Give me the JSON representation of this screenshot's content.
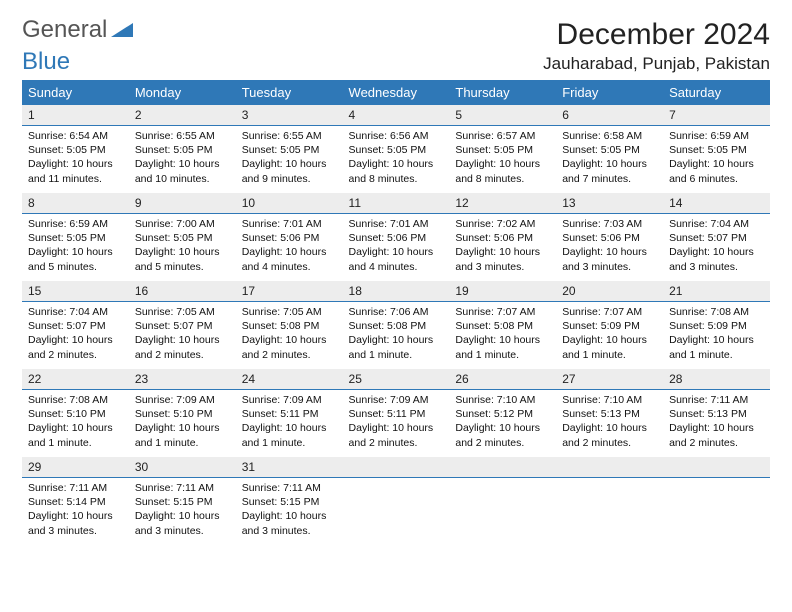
{
  "brand": {
    "word1": "General",
    "word2": "Blue"
  },
  "title": "December 2024",
  "location": "Jauharabad, Punjab, Pakistan",
  "colors": {
    "header_bg": "#2f78b7",
    "header_fg": "#ffffff",
    "daynum_bg": "#ededed",
    "rule": "#2f78b7",
    "page_bg": "#ffffff",
    "text": "#111111"
  },
  "day_headers": [
    "Sunday",
    "Monday",
    "Tuesday",
    "Wednesday",
    "Thursday",
    "Friday",
    "Saturday"
  ],
  "days": [
    {
      "n": "1",
      "sr": "Sunrise: 6:54 AM",
      "ss": "Sunset: 5:05 PM",
      "dl1": "Daylight: 10 hours",
      "dl2": "and 11 minutes."
    },
    {
      "n": "2",
      "sr": "Sunrise: 6:55 AM",
      "ss": "Sunset: 5:05 PM",
      "dl1": "Daylight: 10 hours",
      "dl2": "and 10 minutes."
    },
    {
      "n": "3",
      "sr": "Sunrise: 6:55 AM",
      "ss": "Sunset: 5:05 PM",
      "dl1": "Daylight: 10 hours",
      "dl2": "and 9 minutes."
    },
    {
      "n": "4",
      "sr": "Sunrise: 6:56 AM",
      "ss": "Sunset: 5:05 PM",
      "dl1": "Daylight: 10 hours",
      "dl2": "and 8 minutes."
    },
    {
      "n": "5",
      "sr": "Sunrise: 6:57 AM",
      "ss": "Sunset: 5:05 PM",
      "dl1": "Daylight: 10 hours",
      "dl2": "and 8 minutes."
    },
    {
      "n": "6",
      "sr": "Sunrise: 6:58 AM",
      "ss": "Sunset: 5:05 PM",
      "dl1": "Daylight: 10 hours",
      "dl2": "and 7 minutes."
    },
    {
      "n": "7",
      "sr": "Sunrise: 6:59 AM",
      "ss": "Sunset: 5:05 PM",
      "dl1": "Daylight: 10 hours",
      "dl2": "and 6 minutes."
    },
    {
      "n": "8",
      "sr": "Sunrise: 6:59 AM",
      "ss": "Sunset: 5:05 PM",
      "dl1": "Daylight: 10 hours",
      "dl2": "and 5 minutes."
    },
    {
      "n": "9",
      "sr": "Sunrise: 7:00 AM",
      "ss": "Sunset: 5:05 PM",
      "dl1": "Daylight: 10 hours",
      "dl2": "and 5 minutes."
    },
    {
      "n": "10",
      "sr": "Sunrise: 7:01 AM",
      "ss": "Sunset: 5:06 PM",
      "dl1": "Daylight: 10 hours",
      "dl2": "and 4 minutes."
    },
    {
      "n": "11",
      "sr": "Sunrise: 7:01 AM",
      "ss": "Sunset: 5:06 PM",
      "dl1": "Daylight: 10 hours",
      "dl2": "and 4 minutes."
    },
    {
      "n": "12",
      "sr": "Sunrise: 7:02 AM",
      "ss": "Sunset: 5:06 PM",
      "dl1": "Daylight: 10 hours",
      "dl2": "and 3 minutes."
    },
    {
      "n": "13",
      "sr": "Sunrise: 7:03 AM",
      "ss": "Sunset: 5:06 PM",
      "dl1": "Daylight: 10 hours",
      "dl2": "and 3 minutes."
    },
    {
      "n": "14",
      "sr": "Sunrise: 7:04 AM",
      "ss": "Sunset: 5:07 PM",
      "dl1": "Daylight: 10 hours",
      "dl2": "and 3 minutes."
    },
    {
      "n": "15",
      "sr": "Sunrise: 7:04 AM",
      "ss": "Sunset: 5:07 PM",
      "dl1": "Daylight: 10 hours",
      "dl2": "and 2 minutes."
    },
    {
      "n": "16",
      "sr": "Sunrise: 7:05 AM",
      "ss": "Sunset: 5:07 PM",
      "dl1": "Daylight: 10 hours",
      "dl2": "and 2 minutes."
    },
    {
      "n": "17",
      "sr": "Sunrise: 7:05 AM",
      "ss": "Sunset: 5:08 PM",
      "dl1": "Daylight: 10 hours",
      "dl2": "and 2 minutes."
    },
    {
      "n": "18",
      "sr": "Sunrise: 7:06 AM",
      "ss": "Sunset: 5:08 PM",
      "dl1": "Daylight: 10 hours",
      "dl2": "and 1 minute."
    },
    {
      "n": "19",
      "sr": "Sunrise: 7:07 AM",
      "ss": "Sunset: 5:08 PM",
      "dl1": "Daylight: 10 hours",
      "dl2": "and 1 minute."
    },
    {
      "n": "20",
      "sr": "Sunrise: 7:07 AM",
      "ss": "Sunset: 5:09 PM",
      "dl1": "Daylight: 10 hours",
      "dl2": "and 1 minute."
    },
    {
      "n": "21",
      "sr": "Sunrise: 7:08 AM",
      "ss": "Sunset: 5:09 PM",
      "dl1": "Daylight: 10 hours",
      "dl2": "and 1 minute."
    },
    {
      "n": "22",
      "sr": "Sunrise: 7:08 AM",
      "ss": "Sunset: 5:10 PM",
      "dl1": "Daylight: 10 hours",
      "dl2": "and 1 minute."
    },
    {
      "n": "23",
      "sr": "Sunrise: 7:09 AM",
      "ss": "Sunset: 5:10 PM",
      "dl1": "Daylight: 10 hours",
      "dl2": "and 1 minute."
    },
    {
      "n": "24",
      "sr": "Sunrise: 7:09 AM",
      "ss": "Sunset: 5:11 PM",
      "dl1": "Daylight: 10 hours",
      "dl2": "and 1 minute."
    },
    {
      "n": "25",
      "sr": "Sunrise: 7:09 AM",
      "ss": "Sunset: 5:11 PM",
      "dl1": "Daylight: 10 hours",
      "dl2": "and 2 minutes."
    },
    {
      "n": "26",
      "sr": "Sunrise: 7:10 AM",
      "ss": "Sunset: 5:12 PM",
      "dl1": "Daylight: 10 hours",
      "dl2": "and 2 minutes."
    },
    {
      "n": "27",
      "sr": "Sunrise: 7:10 AM",
      "ss": "Sunset: 5:13 PM",
      "dl1": "Daylight: 10 hours",
      "dl2": "and 2 minutes."
    },
    {
      "n": "28",
      "sr": "Sunrise: 7:11 AM",
      "ss": "Sunset: 5:13 PM",
      "dl1": "Daylight: 10 hours",
      "dl2": "and 2 minutes."
    },
    {
      "n": "29",
      "sr": "Sunrise: 7:11 AM",
      "ss": "Sunset: 5:14 PM",
      "dl1": "Daylight: 10 hours",
      "dl2": "and 3 minutes."
    },
    {
      "n": "30",
      "sr": "Sunrise: 7:11 AM",
      "ss": "Sunset: 5:15 PM",
      "dl1": "Daylight: 10 hours",
      "dl2": "and 3 minutes."
    },
    {
      "n": "31",
      "sr": "Sunrise: 7:11 AM",
      "ss": "Sunset: 5:15 PM",
      "dl1": "Daylight: 10 hours",
      "dl2": "and 3 minutes."
    }
  ]
}
